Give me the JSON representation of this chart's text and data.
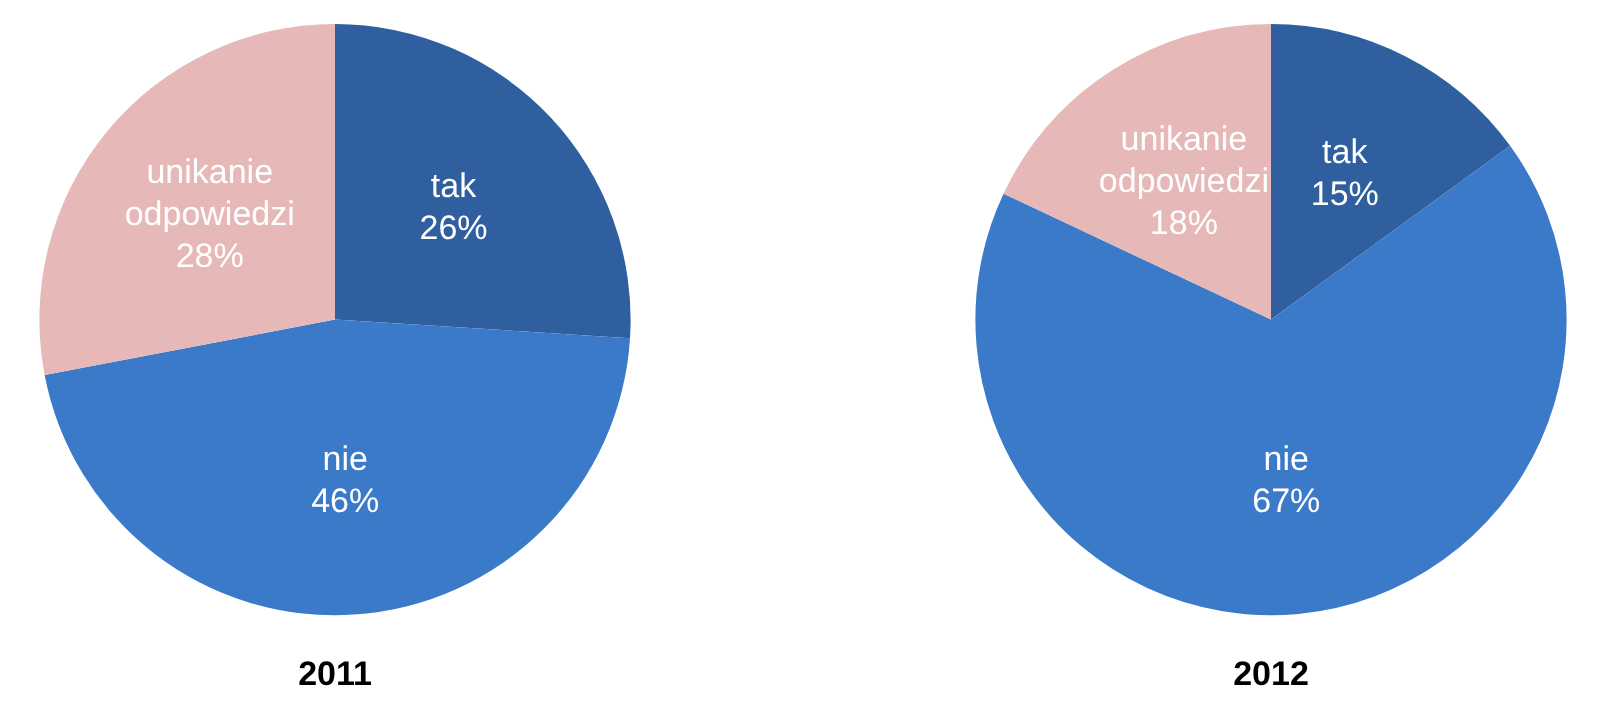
{
  "chart_data": [
    {
      "type": "pie",
      "title": "2011",
      "categories": [
        "tak",
        "nie",
        "unikanie odpowiedzi"
      ],
      "values": [
        26,
        46,
        28
      ],
      "colors": [
        "#2f5f9f",
        "#3b79c9",
        "#e6b9b8"
      ],
      "value_labels": [
        "26%",
        "46%",
        "28%"
      ],
      "legend": false
    },
    {
      "type": "pie",
      "title": "2012",
      "categories": [
        "tak",
        "nie",
        "unikanie odpowiedzi"
      ],
      "values": [
        15,
        67,
        18
      ],
      "colors": [
        "#2f5f9f",
        "#3b79c9",
        "#e6b9b8"
      ],
      "value_labels": [
        "15%",
        "67%",
        "18%"
      ],
      "legend": false
    }
  ]
}
